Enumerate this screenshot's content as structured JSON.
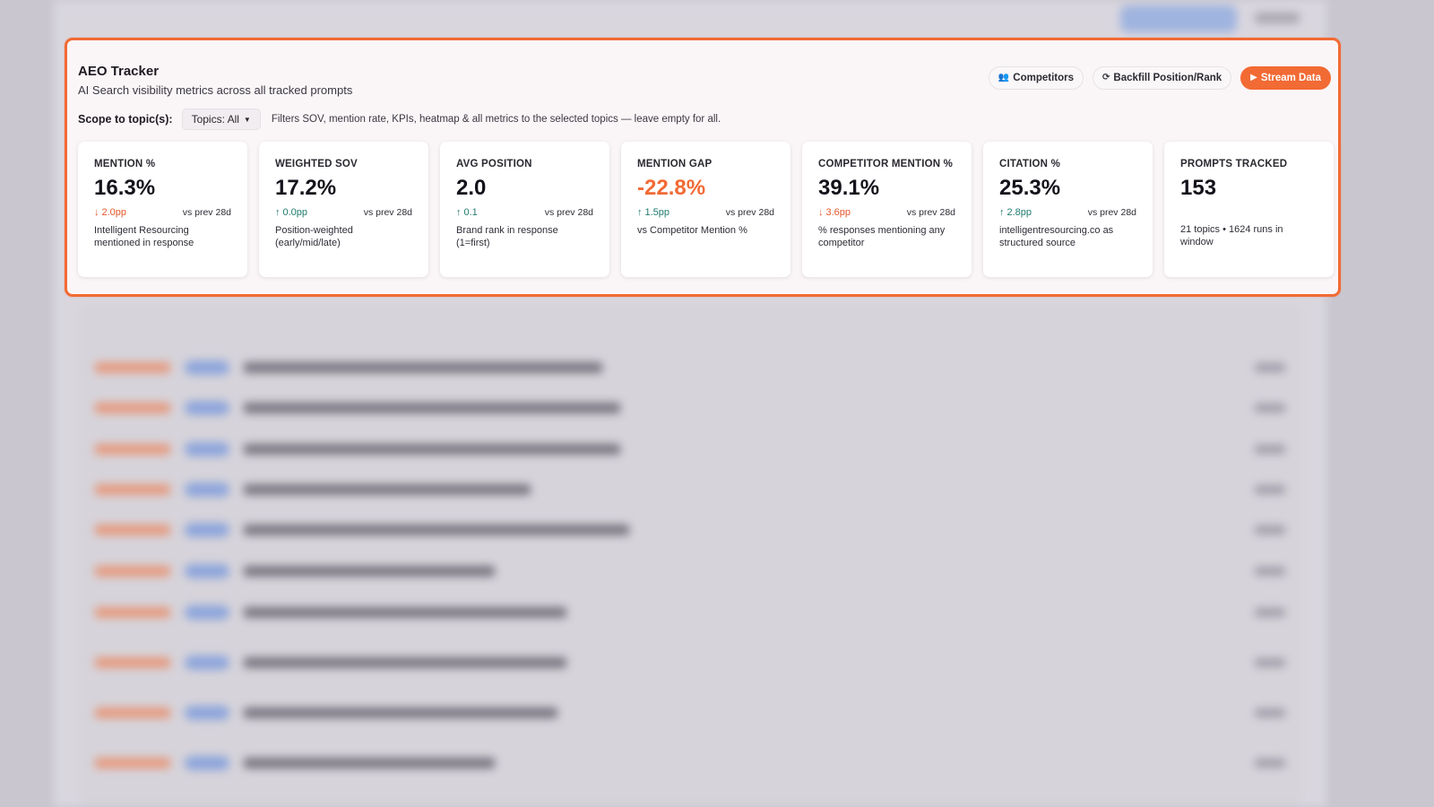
{
  "background": {
    "breadcrumb": [
      "",
      ""
    ]
  },
  "panel": {
    "title": "AEO Tracker",
    "subtitle": "AI Search visibility metrics across all tracked prompts",
    "actions": {
      "competitors_label": "Competitors",
      "backfill_label": "Backfill Position/Rank",
      "stream_label": "Stream Data"
    },
    "scope": {
      "label": "Scope to topic(s):",
      "select_value": "Topics: All",
      "help": "Filters SOV, mention rate, KPIs, heatmap & all metrics to the selected topics — leave empty for all."
    },
    "cards": [
      {
        "label": "MENTION %",
        "value": "16.3%",
        "delta": "2.0pp",
        "direction": "down",
        "vs": "vs prev 28d",
        "note": "Intelligent Resourcing mentioned in response"
      },
      {
        "label": "WEIGHTED SOV",
        "value": "17.2%",
        "delta": "0.0pp",
        "direction": "up",
        "vs": "vs prev 28d",
        "note": "Position-weighted (early/mid/late)"
      },
      {
        "label": "AVG POSITION",
        "value": "2.0",
        "delta": "0.1",
        "direction": "up",
        "vs": "vs prev 28d",
        "note": "Brand rank in response (1=first)"
      },
      {
        "label": "MENTION GAP",
        "value": "-22.8%",
        "delta": "1.5pp",
        "direction": "up",
        "vs": "vs prev 28d",
        "note": "vs Competitor Mention %"
      },
      {
        "label": "COMPETITOR MENTION %",
        "value": "39.1%",
        "delta": "3.6pp",
        "direction": "down",
        "vs": "vs prev 28d",
        "note": "% responses mentioning any competitor"
      },
      {
        "label": "CITATION %",
        "value": "25.3%",
        "delta": "2.8pp",
        "direction": "up",
        "vs": "vs prev 28d",
        "note": "intelligentresourcing.co as structured source"
      },
      {
        "label": "PROMPTS TRACKED",
        "value": "153",
        "note": "21 topics • 1624 runs in window"
      }
    ]
  },
  "colors": {
    "accent": "#f26a34",
    "positive": "#1f7b6e",
    "negative": "#e5562a"
  }
}
